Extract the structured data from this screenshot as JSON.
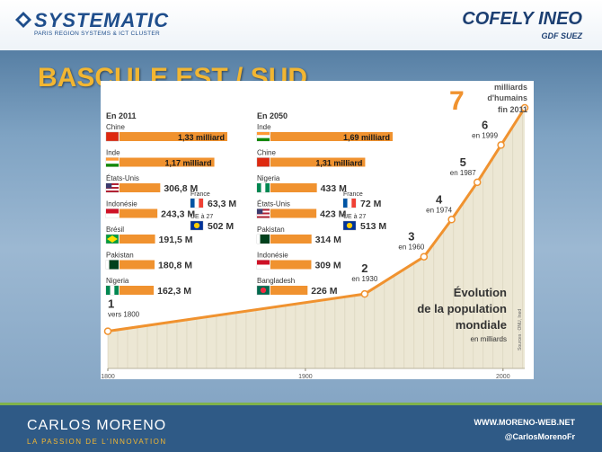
{
  "header": {
    "logo_left": "SYSTEMATIC",
    "logo_left_sub": "PARIS REGION SYSTEMS & ICT CLUSTER",
    "logo_right": "COFELY INEO",
    "logo_right_sub": "GDF SUEZ"
  },
  "slide_title": "BASCULE EST / SUD",
  "chart_data": [
    {
      "type": "line",
      "title": "Évolution de la population mondiale",
      "ylabel": "en milliards",
      "x": [
        1800,
        1930,
        1960,
        1974,
        1987,
        1999,
        2011
      ],
      "y": [
        1,
        2,
        3,
        4,
        5,
        6,
        7
      ],
      "point_labels": [
        "1",
        "2",
        "3",
        "4",
        "5",
        "6",
        "7"
      ],
      "point_sublabels": [
        "vers 1800",
        "en 1930",
        "en 1960",
        "en 1974",
        "en 1987",
        "en 1999",
        ""
      ],
      "callout": {
        "value": "7",
        "line1": "milliards",
        "line2": "d'humains",
        "line3": "fin 2011"
      },
      "x_ticks": [
        "1800",
        "1900",
        "2000"
      ],
      "xlim": [
        1800,
        2011
      ],
      "ylim": [
        0,
        7
      ],
      "grid": true,
      "source": "Sources : ONU, Ined",
      "line_color": "#f0922f"
    },
    {
      "type": "bar",
      "title": "En 2011",
      "unit": "population",
      "categories": [
        "Chine",
        "Inde",
        "États-Unis",
        "Indonésie",
        "Brésil",
        "Pakistan",
        "Nigeria"
      ],
      "values": [
        1330,
        1170,
        306.8,
        243.3,
        191.5,
        180.8,
        162.3
      ],
      "value_labels": [
        "1,33 milliard",
        "1,17 milliard",
        "306,8 M",
        "243,3 M",
        "191,5 M",
        "180,8 M",
        "162,3 M"
      ],
      "extra": [
        {
          "name": "France",
          "value": 63.3,
          "label": "63,3 M"
        },
        {
          "name": "UE à 27",
          "value": 502,
          "label": "502 M"
        }
      ]
    },
    {
      "type": "bar",
      "title": "En 2050",
      "unit": "population",
      "categories": [
        "Inde",
        "Chine",
        "Nigeria",
        "États-Unis",
        "Pakistan",
        "Indonésie",
        "Bangladesh"
      ],
      "values": [
        1690,
        1310,
        433,
        423,
        314,
        309,
        226
      ],
      "value_labels": [
        "1,69 milliard",
        "1,31 milliard",
        "433 M",
        "423 M",
        "314 M",
        "309 M",
        "226 M"
      ],
      "extra": [
        {
          "name": "France",
          "value": 72,
          "label": "72 M"
        },
        {
          "name": "UE à 27",
          "value": 513,
          "label": "513 M"
        }
      ]
    }
  ],
  "footer": {
    "name": "CARLOS MORENO",
    "tagline": "LA PASSION DE L'INNOVATION",
    "website": "WWW.MORENO-WEB.NET",
    "twitter": "@CarlosMorenoFr"
  }
}
